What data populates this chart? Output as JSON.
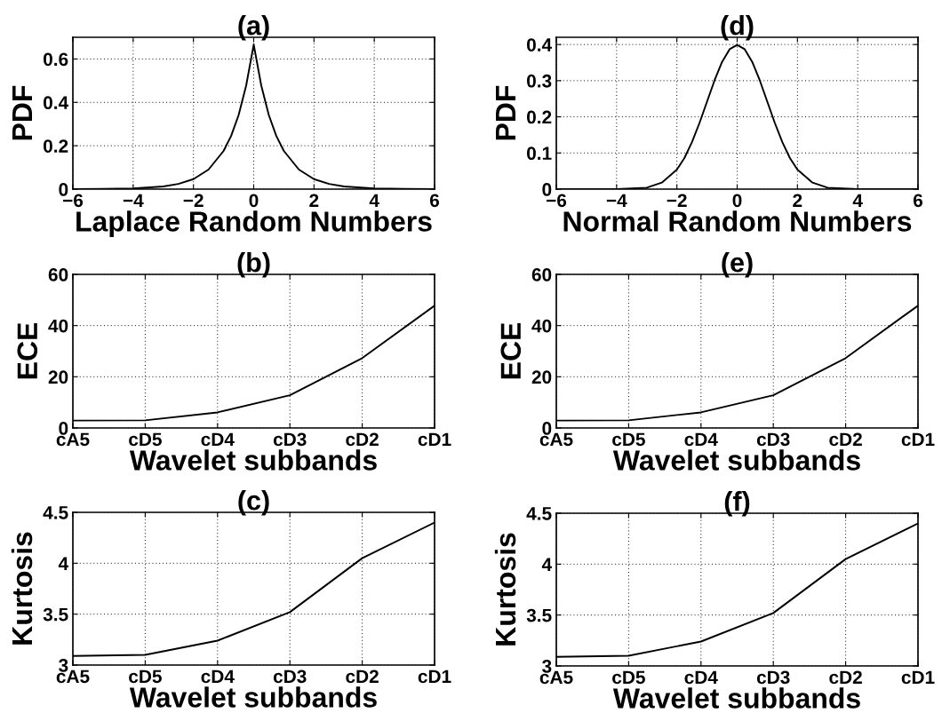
{
  "chart_data": [
    {
      "type": "line",
      "title": "(a)",
      "xlabel": "Laplace Random Numbers",
      "ylabel": "PDF",
      "grid": true,
      "xlim": [
        -6,
        6
      ],
      "xticks": [
        -6,
        -4,
        -2,
        0,
        2,
        4,
        6
      ],
      "ylim": [
        0,
        0.7
      ],
      "yticks": [
        0,
        0.2,
        0.4,
        0.6
      ],
      "x": [
        -6,
        -5,
        -4,
        -3,
        -2.5,
        -2,
        -1.5,
        -1,
        -0.75,
        -0.5,
        -0.25,
        0,
        0.25,
        0.5,
        0.75,
        1,
        1.5,
        2,
        2.5,
        3,
        4,
        5,
        6
      ],
      "series": [
        {
          "color": "#000000",
          "values": [
            0.0,
            0.001,
            0.003,
            0.012,
            0.024,
            0.046,
            0.09,
            0.176,
            0.245,
            0.342,
            0.478,
            0.667,
            0.478,
            0.342,
            0.245,
            0.176,
            0.09,
            0.046,
            0.024,
            0.012,
            0.003,
            0.001,
            0.0
          ]
        }
      ]
    },
    {
      "type": "line",
      "title": "(d)",
      "xlabel": "Normal Random Numbers",
      "ylabel": "PDF",
      "grid": true,
      "xlim": [
        -6,
        6
      ],
      "xticks": [
        -6,
        -4,
        -2,
        0,
        2,
        4,
        6
      ],
      "ylim": [
        0,
        0.42
      ],
      "yticks": [
        0,
        0.1,
        0.2,
        0.3,
        0.4
      ],
      "x": [
        -6,
        -4,
        -3,
        -2.5,
        -2,
        -1.75,
        -1.5,
        -1.25,
        -1,
        -0.75,
        -0.5,
        -0.25,
        0,
        0.25,
        0.5,
        0.75,
        1,
        1.25,
        1.5,
        1.75,
        2,
        2.5,
        3,
        4,
        6
      ],
      "series": [
        {
          "color": "#000000",
          "values": [
            0.0,
            0.0,
            0.004,
            0.018,
            0.054,
            0.086,
            0.13,
            0.183,
            0.242,
            0.301,
            0.352,
            0.387,
            0.399,
            0.387,
            0.352,
            0.301,
            0.242,
            0.183,
            0.13,
            0.086,
            0.054,
            0.018,
            0.004,
            0.0,
            0.0
          ]
        }
      ]
    },
    {
      "type": "line",
      "title": "(b)",
      "xlabel": "Wavelet subbands",
      "ylabel": "ECE",
      "grid": true,
      "categories": [
        "cA5",
        "cD5",
        "cD4",
        "cD3",
        "cD2",
        "cD1"
      ],
      "ylim": [
        0,
        60
      ],
      "yticks": [
        0,
        20,
        40,
        60
      ],
      "series": [
        {
          "color": "#000000",
          "values": [
            2.9,
            3.0,
            6.1,
            12.8,
            27.3,
            47.8
          ]
        }
      ]
    },
    {
      "type": "line",
      "title": "(e)",
      "xlabel": "Wavelet subbands",
      "ylabel": "ECE",
      "grid": true,
      "categories": [
        "cA5",
        "cD5",
        "cD4",
        "cD3",
        "cD2",
        "cD1"
      ],
      "ylim": [
        0,
        60
      ],
      "yticks": [
        0,
        20,
        40,
        60
      ],
      "series": [
        {
          "color": "#000000",
          "values": [
            2.9,
            3.0,
            6.1,
            12.8,
            27.3,
            47.8
          ]
        }
      ]
    },
    {
      "type": "line",
      "title": "(c)",
      "xlabel": "Wavelet subbands",
      "ylabel": "Kurtosis",
      "grid": true,
      "categories": [
        "cA5",
        "cD5",
        "cD4",
        "cD3",
        "cD2",
        "cD1"
      ],
      "ylim": [
        3,
        4.5
      ],
      "yticks": [
        3,
        3.5,
        4,
        4.5
      ],
      "series": [
        {
          "color": "#000000",
          "values": [
            3.09,
            3.1,
            3.24,
            3.52,
            4.05,
            4.4
          ]
        }
      ]
    },
    {
      "type": "line",
      "title": "(f)",
      "xlabel": "Wavelet subbands",
      "ylabel": "Kurtosis",
      "grid": true,
      "categories": [
        "cA5",
        "cD5",
        "cD4",
        "cD3",
        "cD2",
        "cD1"
      ],
      "ylim": [
        3,
        4.5
      ],
      "yticks": [
        3,
        3.5,
        4,
        4.5
      ],
      "series": [
        {
          "color": "#000000",
          "values": [
            3.09,
            3.1,
            3.24,
            3.52,
            4.05,
            4.4
          ]
        }
      ]
    }
  ]
}
